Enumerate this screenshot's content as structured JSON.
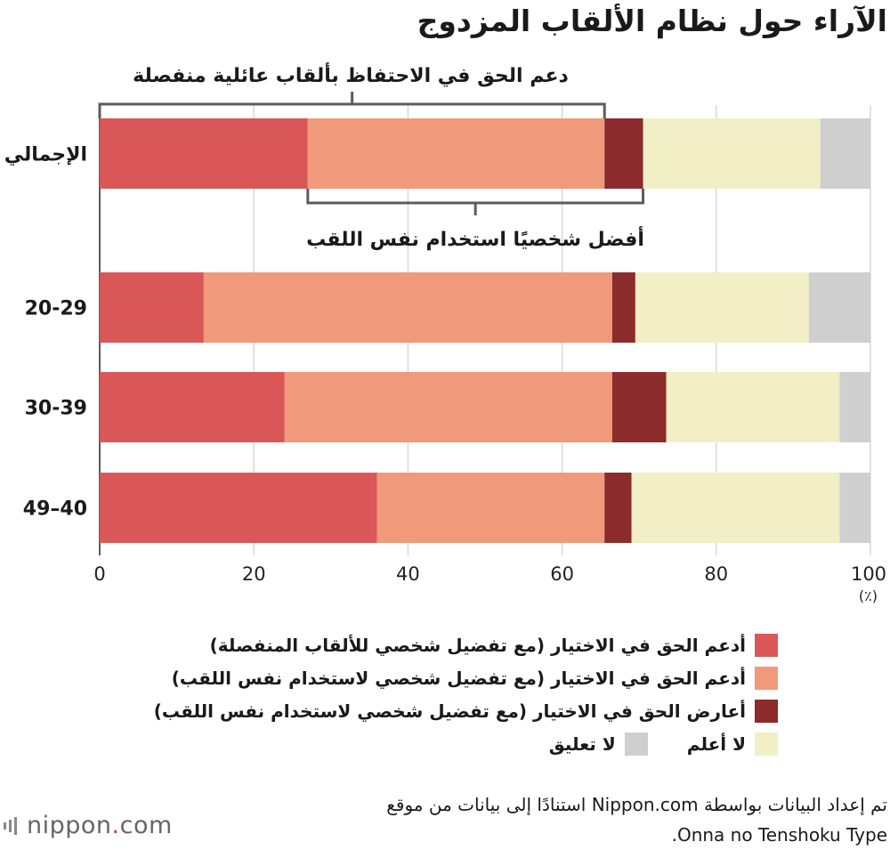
{
  "chart_data": {
    "type": "bar",
    "orientation": "horizontal",
    "stacked": true,
    "title": "الآراء حول نظام الألقاب المزدوج",
    "categories": [
      "الإجمالي",
      "20-29",
      "30-39",
      "49–40"
    ],
    "series": [
      {
        "name": "أدعم الحق في الاختيار (مع تفضيل شخصي للألقاب المنفصلة)",
        "color": "#d95757",
        "values": [
          27.0,
          13.5,
          24.0,
          36.0
        ]
      },
      {
        "name": "أدعم الحق في الاختيار (مع تفضيل شخصي لاستخدام نفس اللقب)",
        "color": "#f09a7b",
        "values": [
          38.5,
          53.0,
          42.5,
          29.5
        ]
      },
      {
        "name": "أعارض الحق في الاختيار (مع تفضيل شخصي لاستخدام نفس اللقب)",
        "color": "#8b2b2b",
        "values": [
          5.0,
          3.0,
          7.0,
          3.5
        ]
      },
      {
        "name": "لا أعلم",
        "color": "#f2eec6",
        "values": [
          23.0,
          22.5,
          22.5,
          27.0
        ]
      },
      {
        "name": "لا تعليق",
        "color": "#cfcfcf",
        "values": [
          6.5,
          8.0,
          4.0,
          4.0
        ]
      }
    ],
    "xlim": [
      0,
      100
    ],
    "x_ticks": [
      "0",
      "20",
      "40",
      "60",
      "80",
      "100"
    ],
    "xunit": "(٪)",
    "grid": true,
    "annotations": [
      {
        "text": "دعم الحق في الاحتفاظ بألقاب عائلية منفصلة",
        "category": "الإجمالي",
        "from": 0,
        "to": 65.5,
        "position": "above"
      },
      {
        "text": "أفضل شخصيًا استخدام نفس اللقب",
        "category": "الإجمالي",
        "from": 27.0,
        "to": 70.5,
        "position": "below"
      }
    ]
  },
  "legend_rows": [
    [
      0
    ],
    [
      1
    ],
    [
      2
    ],
    [
      3,
      4
    ]
  ],
  "source": {
    "line1": "تم إعداد البيانات بواسطة Nippon.com استنادًا إلى بيانات من موقع",
    "line2": "Onna no Tenshoku Type."
  },
  "logo": {
    "name": "nippon",
    "dot": ".",
    "suffix": "com"
  }
}
